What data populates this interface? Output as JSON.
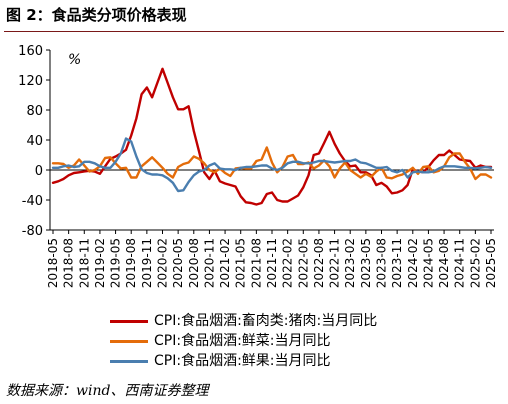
{
  "figure": {
    "title": "图 2：食品类分项价格表现",
    "source": "数据来源：wind、西南证券整理"
  },
  "chart_data": {
    "type": "line",
    "unit_label": "%",
    "ylim": [
      -80,
      160
    ],
    "yticks": [
      -80,
      -40,
      0,
      40,
      80,
      120,
      160
    ],
    "x_tick_labels": [
      "2018-05",
      "2018-08",
      "2018-11",
      "2019-02",
      "2019-05",
      "2019-08",
      "2019-11",
      "2020-02",
      "2020-05",
      "2020-08",
      "2020-11",
      "2021-02",
      "2021-05",
      "2021-08",
      "2021-11",
      "2022-02",
      "2022-05",
      "2022-08",
      "2022-11",
      "2023-02",
      "2023-05",
      "2023-08",
      "2023-11",
      "2024-02",
      "2024-05",
      "2024-08",
      "2024-11",
      "2025-02",
      "2025-05"
    ],
    "x": [
      "2018-05",
      "2018-06",
      "2018-07",
      "2018-08",
      "2018-09",
      "2018-10",
      "2018-11",
      "2018-12",
      "2019-01",
      "2019-02",
      "2019-03",
      "2019-04",
      "2019-05",
      "2019-06",
      "2019-07",
      "2019-08",
      "2019-09",
      "2019-10",
      "2019-11",
      "2019-12",
      "2020-01",
      "2020-02",
      "2020-03",
      "2020-04",
      "2020-05",
      "2020-06",
      "2020-07",
      "2020-08",
      "2020-09",
      "2020-10",
      "2020-11",
      "2020-12",
      "2021-01",
      "2021-02",
      "2021-03",
      "2021-04",
      "2021-05",
      "2021-06",
      "2021-07",
      "2021-08",
      "2021-09",
      "2021-10",
      "2021-11",
      "2021-12",
      "2022-01",
      "2022-02",
      "2022-03",
      "2022-04",
      "2022-05",
      "2022-06",
      "2022-07",
      "2022-08",
      "2022-09",
      "2022-10",
      "2022-11",
      "2022-12",
      "2023-01",
      "2023-02",
      "2023-03",
      "2023-04",
      "2023-05",
      "2023-06",
      "2023-07",
      "2023-08",
      "2023-09",
      "2023-10",
      "2023-11",
      "2023-12",
      "2024-01",
      "2024-02",
      "2024-03",
      "2024-04",
      "2024-05",
      "2024-06",
      "2024-07",
      "2024-08",
      "2024-09",
      "2024-10",
      "2024-11",
      "2024-12",
      "2025-01",
      "2025-02",
      "2025-03",
      "2025-04",
      "2025-05"
    ],
    "series": [
      {
        "name": "CPI:食品烟酒:畜肉类:猪肉:当月同比",
        "color": "#c00000",
        "values": [
          -17,
          -15,
          -12,
          -7,
          -4,
          -3,
          -2,
          -1,
          -2,
          -5,
          5,
          15,
          18,
          22,
          27,
          46,
          69,
          101,
          110,
          97,
          116,
          135,
          116,
          97,
          81,
          81,
          85,
          52,
          25,
          -3,
          -12,
          -1,
          -15,
          -18,
          -20,
          -22,
          -35,
          -43,
          -44,
          -46,
          -44,
          -32,
          -30,
          -40,
          -42,
          -42,
          -38,
          -34,
          -23,
          -7,
          20,
          22,
          36,
          51,
          35,
          22,
          12,
          5,
          6,
          -3,
          -3,
          -7,
          -20,
          -17,
          -22,
          -31,
          -30,
          -27,
          -20,
          1,
          -2,
          -3,
          4,
          13,
          20,
          20,
          26,
          20,
          14,
          13,
          12,
          3,
          6,
          4,
          4
        ]
      },
      {
        "name": "CPI:食品烟酒:鲜菜:当月同比",
        "color": "#e46c0a",
        "values": [
          9,
          9,
          8,
          3,
          6,
          14,
          6,
          -2,
          0,
          5,
          16,
          17,
          9,
          2,
          3,
          -10,
          -10,
          5,
          11,
          17,
          10,
          3,
          -5,
          -10,
          4,
          8,
          10,
          18,
          15,
          9,
          0,
          -3,
          2,
          -4,
          -8,
          2,
          3,
          2,
          2,
          12,
          14,
          30,
          10,
          -3,
          4,
          18,
          20,
          8,
          8,
          10,
          2,
          6,
          13,
          5,
          -10,
          2,
          10,
          0,
          -5,
          -10,
          -5,
          -9,
          -2,
          3,
          -10,
          -11,
          -8,
          -6,
          -2,
          3,
          -5,
          4,
          5,
          -3,
          -1,
          5,
          17,
          22,
          22,
          11,
          2,
          -12,
          -6,
          -6,
          -10
        ]
      },
      {
        "name": "CPI:食品烟酒:鲜果:当月同比",
        "color": "#4a7eaf",
        "values": [
          3,
          3,
          5,
          6,
          4,
          5,
          11,
          11,
          9,
          5,
          3,
          3,
          11,
          22,
          42,
          38,
          18,
          1,
          -4,
          -6,
          -6,
          -7,
          -11,
          -17,
          -28,
          -27,
          -16,
          -7,
          -2,
          0,
          6,
          9,
          2,
          1,
          1,
          0,
          3,
          4,
          4,
          5,
          6,
          6,
          2,
          0,
          3,
          9,
          11,
          11,
          9,
          9,
          10,
          12,
          12,
          11,
          10,
          11,
          12,
          12,
          14,
          10,
          9,
          6,
          3,
          3,
          4,
          -1,
          -3,
          0,
          -10,
          -3,
          -2,
          -3,
          -3,
          -2,
          2,
          5,
          5,
          5,
          4,
          3,
          3,
          2,
          3,
          4,
          3
        ]
      }
    ]
  }
}
